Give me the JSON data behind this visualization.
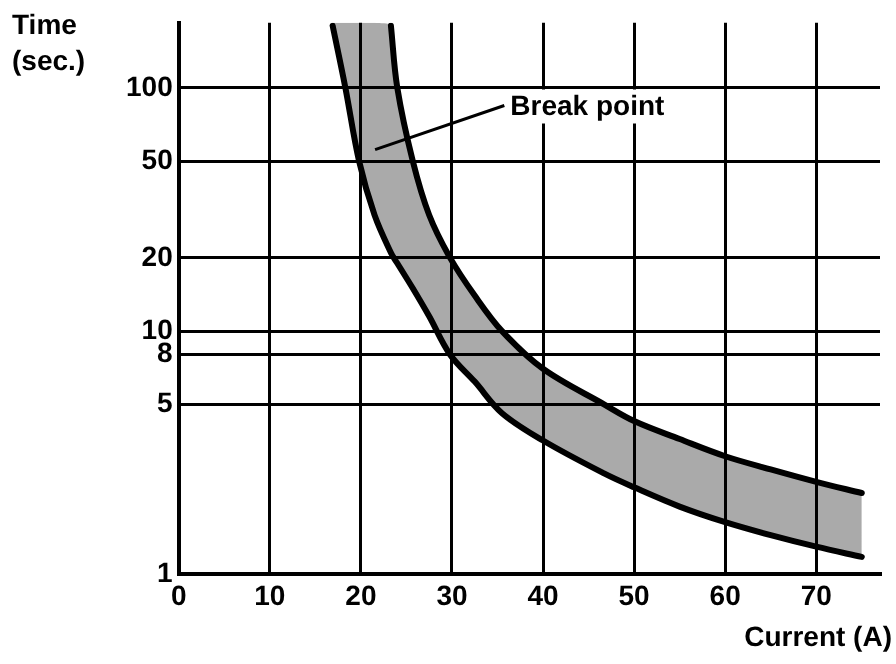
{
  "chart_data": {
    "type": "line",
    "xlabel": "Current (A)",
    "ylabel": "Time\n(sec.)",
    "xlim": [
      0,
      77
    ],
    "xticks": [
      0,
      10,
      20,
      30,
      40,
      50,
      60,
      70
    ],
    "ylim": [
      1,
      185
    ],
    "yticks": [
      1,
      5,
      8,
      10,
      20,
      50,
      100
    ],
    "log": "y",
    "grid": true,
    "marker": "none",
    "legend": false,
    "series": [
      {
        "type": "line",
        "color": "#000000",
        "x": [
          16.9,
          18.3,
          19.8,
          21.5,
          23.3,
          24,
          25.7,
          27.5,
          29.8,
          32.5,
          35.5,
          40,
          46.7,
          50,
          55,
          60,
          65,
          70,
          75
        ],
        "values": [
          180,
          100,
          50,
          30,
          21,
          19,
          15,
          11.5,
          8,
          6.2,
          4.6,
          3.55,
          2.6,
          2.28,
          1.9,
          1.64,
          1.45,
          1.3,
          1.18
        ],
        "lower": [
          180,
          100,
          50,
          30,
          21,
          19,
          15,
          11.5,
          8,
          6.2,
          4.6,
          3.55,
          2.6,
          2.28,
          1.9,
          1.64,
          1.45,
          1.3,
          1.18
        ],
        "upper": [
          185,
          185,
          185,
          185,
          180,
          100,
          50,
          30,
          20,
          14,
          10,
          7,
          5,
          4.27,
          3.6,
          3.06,
          2.7,
          2.4,
          2.16
        ]
      },
      {
        "type": "line",
        "color": "#000000",
        "x": [
          23.3,
          24,
          25.7,
          27.5,
          29.8,
          32.5,
          35.5,
          40,
          46.7,
          50,
          55,
          60,
          65,
          70,
          75
        ],
        "values": [
          180,
          100,
          50,
          30,
          20,
          14,
          10,
          7,
          5,
          4.27,
          3.6,
          3.06,
          2.7,
          2.4,
          2.16
        ]
      }
    ],
    "annotations": [
      "Break point"
    ]
  }
}
